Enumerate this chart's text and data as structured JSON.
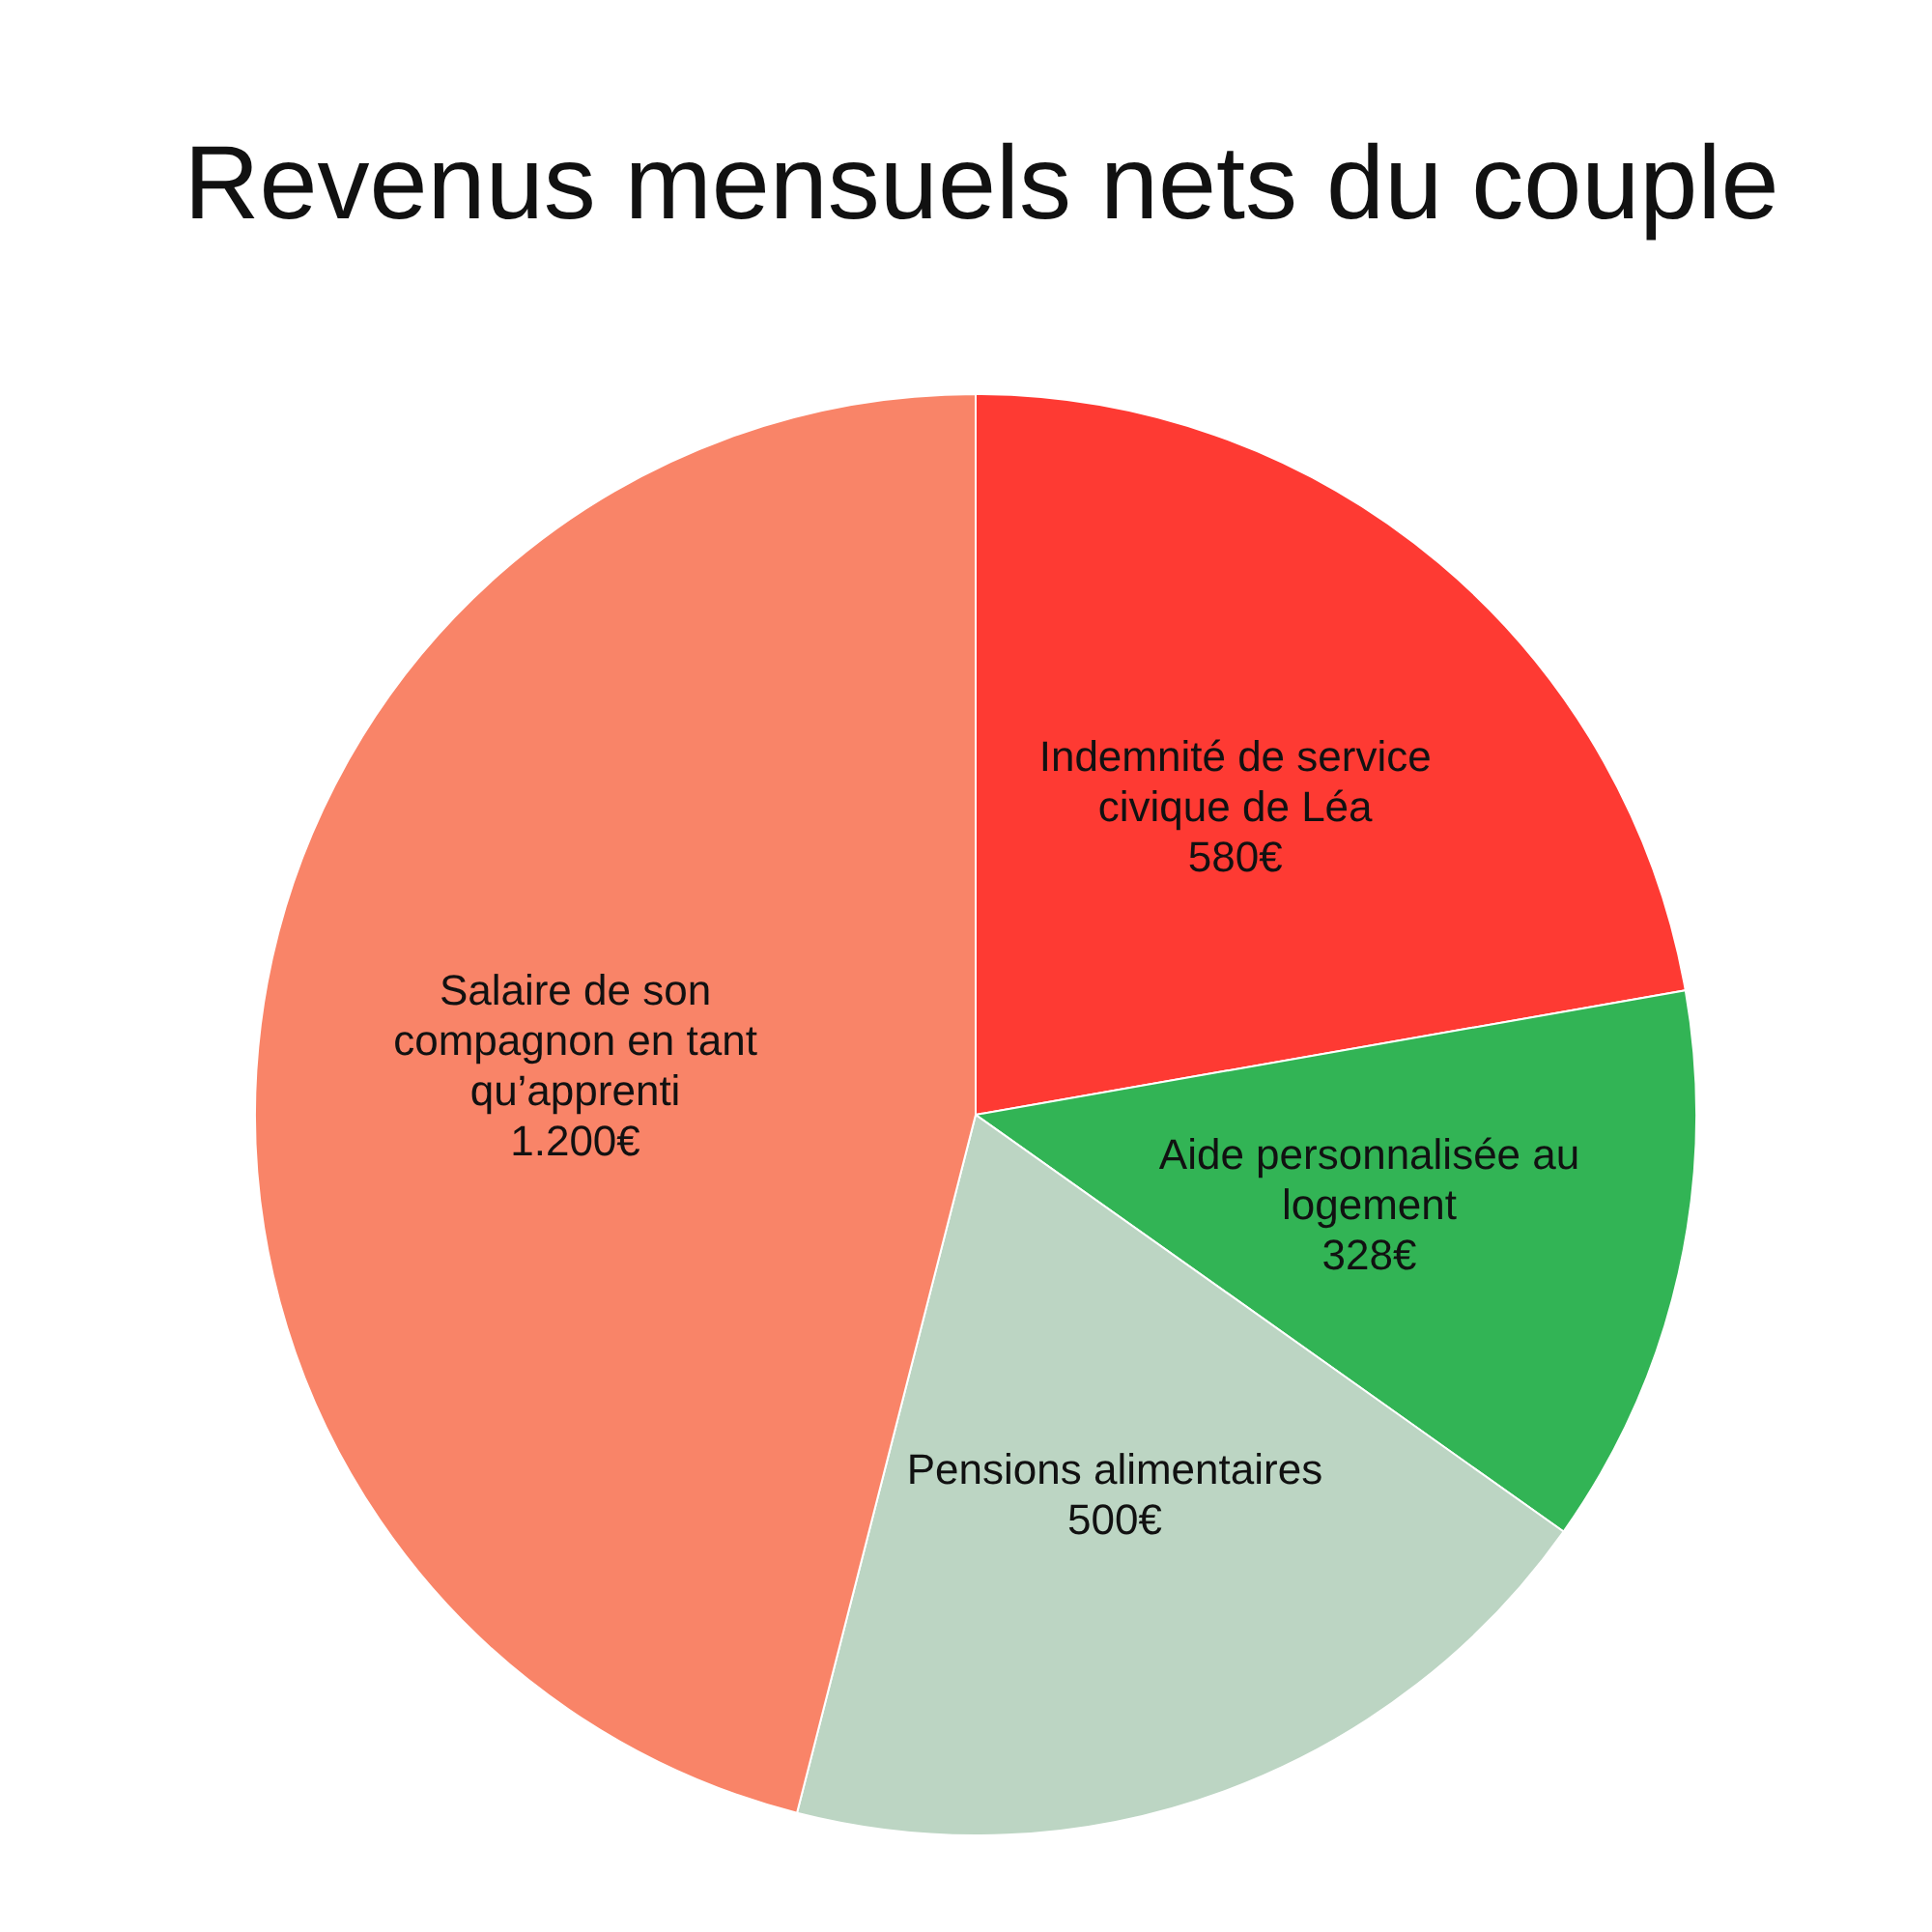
{
  "chart_data": {
    "type": "pie",
    "title": "Revenus mensuels nets du couple",
    "categories": [
      "Indemnité de service civique de Léa",
      "Aide personnalisée au logement",
      "Pensions alimentaires",
      "Salaire de son compagnon en tant qu’apprenti"
    ],
    "values": [
      580,
      328,
      500,
      1200
    ],
    "value_labels": [
      "580€",
      "328€",
      "500€",
      "1.200€"
    ],
    "colors": [
      "#fe3a33",
      "#32b455",
      "#bcd5c3",
      "#f98468"
    ]
  }
}
